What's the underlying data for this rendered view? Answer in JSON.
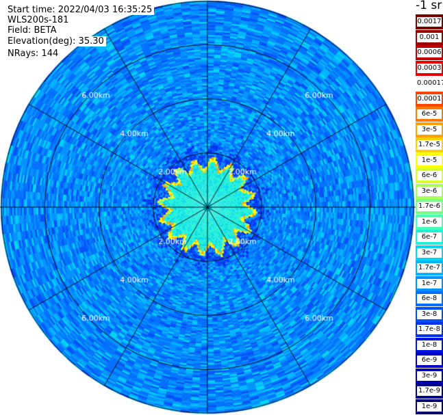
{
  "header": {
    "start_time": "Start time: 2022/04/03 16:35:25",
    "instrument": "WLS200s-181",
    "field": "Field: BETA",
    "elevation": "Elevation(deg): 35.30",
    "nrays": "NRays: 144"
  },
  "colorbar": {
    "unit": "-1 sr",
    "entries": [
      {
        "label": "0.0017",
        "color": "#7a0000"
      },
      {
        "label": "0.001",
        "color": "#9a0000"
      },
      {
        "label": "0.0006",
        "color": "#c00000"
      },
      {
        "label": "0.0003",
        "color": "#e80000"
      },
      {
        "label": "0.00017",
        "color": "#ffffff"
      },
      {
        "label": "0.0001",
        "color": "#ff4400"
      },
      {
        "label": "6e-5",
        "color": "#ff7a00"
      },
      {
        "label": "3e-5",
        "color": "#ffa200"
      },
      {
        "label": "1.7e-5",
        "color": "#ffd000"
      },
      {
        "label": "1e-5",
        "color": "#ffff00"
      },
      {
        "label": "6e-6",
        "color": "#d8ff2a"
      },
      {
        "label": "3e-6",
        "color": "#a8ff5a"
      },
      {
        "label": "1.7e-6",
        "color": "#7aff86"
      },
      {
        "label": "1e-6",
        "color": "#48ffb4"
      },
      {
        "label": "6e-7",
        "color": "#20f0d8"
      },
      {
        "label": "3e-7",
        "color": "#00d4f0"
      },
      {
        "label": "1.7e-7",
        "color": "#00b4ff"
      },
      {
        "label": "1e-7",
        "color": "#0092ff"
      },
      {
        "label": "6e-8",
        "color": "#0070ff"
      },
      {
        "label": "3e-8",
        "color": "#0050f8"
      },
      {
        "label": "1.7e-8",
        "color": "#0030f0"
      },
      {
        "label": "1e-8",
        "color": "#0014e0"
      },
      {
        "label": "6e-9",
        "color": "#0000c8"
      },
      {
        "label": "3e-9",
        "color": "#0000a8"
      },
      {
        "label": "1.7e-9",
        "color": "#00008a"
      },
      {
        "label": "1e-9",
        "color": "#000070"
      }
    ]
  },
  "chart_data": {
    "type": "heatmap",
    "field": "BETA",
    "nrays": 144,
    "range_rings_km": [
      2,
      4,
      6,
      7.6
    ],
    "ring_labels": [
      "2.00km",
      "4.00km",
      "6.00km"
    ],
    "spokes_deg": [
      0,
      30,
      60,
      90,
      120,
      150,
      180,
      210,
      240,
      270,
      300,
      330
    ],
    "feature_near_center": {
      "radius_km": 1.7,
      "rim_value": "1e-5",
      "interior_value": "6e-7"
    },
    "background_value": "6e-8"
  }
}
